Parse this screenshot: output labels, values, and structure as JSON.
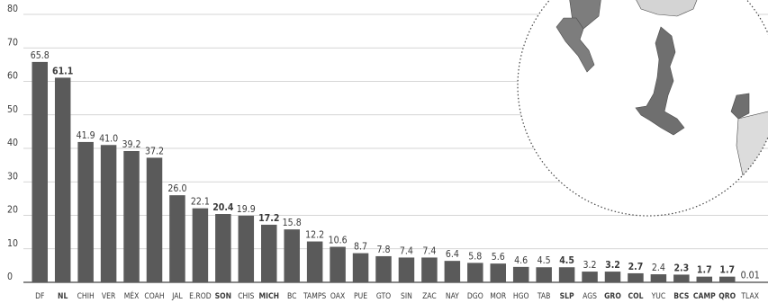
{
  "chart_data": {
    "type": "bar",
    "ylim": [
      0,
      80
    ],
    "yticks": [
      0,
      10,
      20,
      30,
      40,
      50,
      60,
      70,
      80
    ],
    "grid": true,
    "categories": [
      "DF",
      "NL",
      "CHIH",
      "VER",
      "MÉX",
      "COAH",
      "JAL",
      "E.ROD",
      "SON",
      "CHIS",
      "MICH",
      "BC",
      "TAMPS",
      "OAX",
      "PUE",
      "GTO",
      "SIN",
      "ZAC",
      "NAY",
      "DGO",
      "MOR",
      "HGO",
      "TAB",
      "SLP",
      "AGS",
      "GRO",
      "COL",
      "YUC",
      "BCS",
      "CAMP",
      "QRO",
      "TLAX"
    ],
    "values": [
      65.8,
      61.1,
      41.9,
      41.0,
      39.2,
      37.2,
      26.0,
      22.1,
      20.4,
      19.9,
      17.2,
      15.8,
      12.2,
      10.6,
      8.7,
      7.8,
      7.4,
      7.4,
      6.4,
      5.8,
      5.6,
      4.6,
      4.5,
      4.5,
      3.2,
      3.2,
      2.7,
      2.4,
      2.3,
      1.7,
      1.7,
      0.01
    ],
    "value_labels": [
      "65.8",
      "61.1",
      "41.9",
      "41.0",
      "39.2",
      "37.2",
      "26.0",
      "22.1",
      "20.4",
      "19.9",
      "17.2",
      "15.8",
      "12.2",
      "10.6",
      "8.7",
      "7.8",
      "7.4",
      "7.4",
      "6.4",
      "5.8",
      "5.6",
      "4.6",
      "4.5",
      "4.5",
      "3.2",
      "3.2",
      "2.7",
      "2.4",
      "2.3",
      "1.7",
      "1.7",
      "0.01"
    ],
    "bold": [
      "NL",
      "SON",
      "MICH",
      "SLP",
      "GRO",
      "COL",
      "BCS",
      "CAMP",
      "QRO"
    ],
    "colors": {
      "bar": "#5a5a5a",
      "grid": "#c8c8c8",
      "text": "#3a3a3a",
      "map_land": "#7d7d7d",
      "map_state": "#6f6f6f"
    }
  },
  "map_inset": {
    "style": "dotted-circle",
    "highlighted_states_shown": true
  }
}
